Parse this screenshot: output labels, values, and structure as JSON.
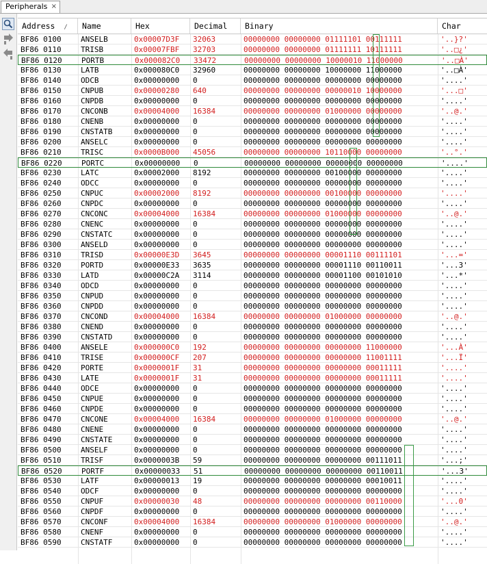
{
  "tab": {
    "title": "Peripherals",
    "close": "×"
  },
  "toolbar": {
    "icons": [
      "search-icon",
      "step-into-icon",
      "step-back-icon"
    ]
  },
  "columns": [
    "Address",
    "Name",
    "Hex",
    "Decimal",
    "Binary",
    "Char"
  ],
  "sort_indicator": "/",
  "colors": {
    "changed": "#d21d1d",
    "normal": "#000000",
    "highlight_box": "#2f8a3a"
  },
  "rows": [
    {
      "addr": "BF86 0100",
      "name": "ANSELB",
      "hex": "0x00007D3F",
      "dec": "32063",
      "bin": "00000000 00000000 01111101 00111111",
      "chr": "'..}?'",
      "changed": true
    },
    {
      "addr": "BF86 0110",
      "name": "TRISB",
      "hex": "0x00007FBF",
      "dec": "32703",
      "bin": "00000000 00000000 01111111 10111111",
      "chr": "'..□¿'",
      "changed": true
    },
    {
      "addr": "BF86 0120",
      "name": "PORTB",
      "hex": "0x000082C0",
      "dec": "33472",
      "bin": "00000000 00000000 10000010 11000000",
      "chr": "'..□À'",
      "changed": true,
      "hl": true
    },
    {
      "addr": "BF86 0130",
      "name": "LATB",
      "hex": "0x000080C0",
      "dec": "32960",
      "bin": "00000000 00000000 10000000 11000000",
      "chr": "'..□À'",
      "changed": false
    },
    {
      "addr": "BF86 0140",
      "name": "ODCB",
      "hex": "0x00000000",
      "dec": "0",
      "bin": "00000000 00000000 00000000 00000000",
      "chr": "'....'",
      "changed": false
    },
    {
      "addr": "BF86 0150",
      "name": "CNPUB",
      "hex": "0x00000280",
      "dec": "640",
      "bin": "00000000 00000000 00000010 10000000",
      "chr": "'...□'",
      "changed": true
    },
    {
      "addr": "BF86 0160",
      "name": "CNPDB",
      "hex": "0x00000000",
      "dec": "0",
      "bin": "00000000 00000000 00000000 00000000",
      "chr": "'....'",
      "changed": false
    },
    {
      "addr": "BF86 0170",
      "name": "CNCONB",
      "hex": "0x00004000",
      "dec": "16384",
      "bin": "00000000 00000000 01000000 00000000",
      "chr": "'..@.'",
      "changed": true
    },
    {
      "addr": "BF86 0180",
      "name": "CNENB",
      "hex": "0x00000000",
      "dec": "0",
      "bin": "00000000 00000000 00000000 00000000",
      "chr": "'....'",
      "changed": false
    },
    {
      "addr": "BF86 0190",
      "name": "CNSTATB",
      "hex": "0x00000000",
      "dec": "0",
      "bin": "00000000 00000000 00000000 00000000",
      "chr": "'....'",
      "changed": false
    },
    {
      "addr": "BF86 0200",
      "name": "ANSELC",
      "hex": "0x00000000",
      "dec": "0",
      "bin": "00000000 00000000 00000000 00000000",
      "chr": "'....'",
      "changed": false
    },
    {
      "addr": "BF86 0210",
      "name": "TRISC",
      "hex": "0x0000B000",
      "dec": "45056",
      "bin": "00000000 00000000 10110000 00000000",
      "chr": "'..°.'",
      "changed": true
    },
    {
      "addr": "BF86 0220",
      "name": "PORTC",
      "hex": "0x00000000",
      "dec": "0",
      "bin": "00000000 00000000 00000000 00000000",
      "chr": "'....'",
      "changed": false,
      "hl": true
    },
    {
      "addr": "BF86 0230",
      "name": "LATC",
      "hex": "0x00002000",
      "dec": "8192",
      "bin": "00000000 00000000 00100000 00000000",
      "chr": "'....'",
      "changed": false
    },
    {
      "addr": "BF86 0240",
      "name": "ODCC",
      "hex": "0x00000000",
      "dec": "0",
      "bin": "00000000 00000000 00000000 00000000",
      "chr": "'....'",
      "changed": false
    },
    {
      "addr": "BF86 0250",
      "name": "CNPUC",
      "hex": "0x00002000",
      "dec": "8192",
      "bin": "00000000 00000000 00100000 00000000",
      "chr": "'....'",
      "changed": true
    },
    {
      "addr": "BF86 0260",
      "name": "CNPDC",
      "hex": "0x00000000",
      "dec": "0",
      "bin": "00000000 00000000 00000000 00000000",
      "chr": "'....'",
      "changed": false
    },
    {
      "addr": "BF86 0270",
      "name": "CNCONC",
      "hex": "0x00004000",
      "dec": "16384",
      "bin": "00000000 00000000 01000000 00000000",
      "chr": "'..@.'",
      "changed": true
    },
    {
      "addr": "BF86 0280",
      "name": "CNENC",
      "hex": "0x00000000",
      "dec": "0",
      "bin": "00000000 00000000 00000000 00000000",
      "chr": "'....'",
      "changed": false
    },
    {
      "addr": "BF86 0290",
      "name": "CNSTATC",
      "hex": "0x00000000",
      "dec": "0",
      "bin": "00000000 00000000 00000000 00000000",
      "chr": "'....'",
      "changed": false
    },
    {
      "addr": "BF86 0300",
      "name": "ANSELD",
      "hex": "0x00000000",
      "dec": "0",
      "bin": "00000000 00000000 00000000 00000000",
      "chr": "'....'",
      "changed": false
    },
    {
      "addr": "BF86 0310",
      "name": "TRISD",
      "hex": "0x00000E3D",
      "dec": "3645",
      "bin": "00000000 00000000 00001110 00111101",
      "chr": "'...='",
      "changed": true
    },
    {
      "addr": "BF86 0320",
      "name": "PORTD",
      "hex": "0x00000E33",
      "dec": "3635",
      "bin": "00000000 00000000 00001110 00110011",
      "chr": "'...3'",
      "changed": false
    },
    {
      "addr": "BF86 0330",
      "name": "LATD",
      "hex": "0x00000C2A",
      "dec": "3114",
      "bin": "00000000 00000000 00001100 00101010",
      "chr": "'...*'",
      "changed": false
    },
    {
      "addr": "BF86 0340",
      "name": "ODCD",
      "hex": "0x00000000",
      "dec": "0",
      "bin": "00000000 00000000 00000000 00000000",
      "chr": "'....'",
      "changed": false
    },
    {
      "addr": "BF86 0350",
      "name": "CNPUD",
      "hex": "0x00000000",
      "dec": "0",
      "bin": "00000000 00000000 00000000 00000000",
      "chr": "'....'",
      "changed": false
    },
    {
      "addr": "BF86 0360",
      "name": "CNPDD",
      "hex": "0x00000000",
      "dec": "0",
      "bin": "00000000 00000000 00000000 00000000",
      "chr": "'....'",
      "changed": false
    },
    {
      "addr": "BF86 0370",
      "name": "CNCOND",
      "hex": "0x00004000",
      "dec": "16384",
      "bin": "00000000 00000000 01000000 00000000",
      "chr": "'..@.'",
      "changed": true
    },
    {
      "addr": "BF86 0380",
      "name": "CNEND",
      "hex": "0x00000000",
      "dec": "0",
      "bin": "00000000 00000000 00000000 00000000",
      "chr": "'....'",
      "changed": false
    },
    {
      "addr": "BF86 0390",
      "name": "CNSTATD",
      "hex": "0x00000000",
      "dec": "0",
      "bin": "00000000 00000000 00000000 00000000",
      "chr": "'....'",
      "changed": false
    },
    {
      "addr": "BF86 0400",
      "name": "ANSELE",
      "hex": "0x000000C0",
      "dec": "192",
      "bin": "00000000 00000000 00000000 11000000",
      "chr": "'...À'",
      "changed": true
    },
    {
      "addr": "BF86 0410",
      "name": "TRISE",
      "hex": "0x000000CF",
      "dec": "207",
      "bin": "00000000 00000000 00000000 11001111",
      "chr": "'...Ï'",
      "changed": true
    },
    {
      "addr": "BF86 0420",
      "name": "PORTE",
      "hex": "0x0000001F",
      "dec": "31",
      "bin": "00000000 00000000 00000000 00011111",
      "chr": "'....'",
      "changed": true
    },
    {
      "addr": "BF86 0430",
      "name": "LATE",
      "hex": "0x0000001F",
      "dec": "31",
      "bin": "00000000 00000000 00000000 00011111",
      "chr": "'....'",
      "changed": true
    },
    {
      "addr": "BF86 0440",
      "name": "ODCE",
      "hex": "0x00000000",
      "dec": "0",
      "bin": "00000000 00000000 00000000 00000000",
      "chr": "'....'",
      "changed": false
    },
    {
      "addr": "BF86 0450",
      "name": "CNPUE",
      "hex": "0x00000000",
      "dec": "0",
      "bin": "00000000 00000000 00000000 00000000",
      "chr": "'....'",
      "changed": false
    },
    {
      "addr": "BF86 0460",
      "name": "CNPDE",
      "hex": "0x00000000",
      "dec": "0",
      "bin": "00000000 00000000 00000000 00000000",
      "chr": "'....'",
      "changed": false
    },
    {
      "addr": "BF86 0470",
      "name": "CNCONE",
      "hex": "0x00004000",
      "dec": "16384",
      "bin": "00000000 00000000 01000000 00000000",
      "chr": "'..@.'",
      "changed": true
    },
    {
      "addr": "BF86 0480",
      "name": "CNENE",
      "hex": "0x00000000",
      "dec": "0",
      "bin": "00000000 00000000 00000000 00000000",
      "chr": "'....'",
      "changed": false
    },
    {
      "addr": "BF86 0490",
      "name": "CNSTATE",
      "hex": "0x00000000",
      "dec": "0",
      "bin": "00000000 00000000 00000000 00000000",
      "chr": "'....'",
      "changed": false
    },
    {
      "addr": "BF86 0500",
      "name": "ANSELF",
      "hex": "0x00000000",
      "dec": "0",
      "bin": "00000000 00000000 00000000 00000000",
      "chr": "'....'",
      "changed": false
    },
    {
      "addr": "BF86 0510",
      "name": "TRISF",
      "hex": "0x0000003B",
      "dec": "59",
      "bin": "00000000 00000000 00000000 00111011",
      "chr": "'...;'",
      "changed": false
    },
    {
      "addr": "BF86 0520",
      "name": "PORTF",
      "hex": "0x00000033",
      "dec": "51",
      "bin": "00000000 00000000 00000000 00110011",
      "chr": "'...3'",
      "changed": false,
      "hl": true
    },
    {
      "addr": "BF86 0530",
      "name": "LATF",
      "hex": "0x00000013",
      "dec": "19",
      "bin": "00000000 00000000 00000000 00010011",
      "chr": "'....'",
      "changed": false
    },
    {
      "addr": "BF86 0540",
      "name": "ODCF",
      "hex": "0x00000000",
      "dec": "0",
      "bin": "00000000 00000000 00000000 00000000",
      "chr": "'....'",
      "changed": false
    },
    {
      "addr": "BF86 0550",
      "name": "CNPUF",
      "hex": "0x00000030",
      "dec": "48",
      "bin": "00000000 00000000 00000000 00110000",
      "chr": "'...0'",
      "changed": true
    },
    {
      "addr": "BF86 0560",
      "name": "CNPDF",
      "hex": "0x00000000",
      "dec": "0",
      "bin": "00000000 00000000 00000000 00000000",
      "chr": "'....'",
      "changed": false
    },
    {
      "addr": "BF86 0570",
      "name": "CNCONF",
      "hex": "0x00004000",
      "dec": "16384",
      "bin": "00000000 00000000 01000000 00000000",
      "chr": "'..@.'",
      "changed": true
    },
    {
      "addr": "BF86 0580",
      "name": "CNENF",
      "hex": "0x00000000",
      "dec": "0",
      "bin": "00000000 00000000 00000000 00000000",
      "chr": "'....'",
      "changed": false
    },
    {
      "addr": "BF86 0590",
      "name": "CNSTATF",
      "hex": "0x00000000",
      "dec": "0",
      "bin": "00000000 00000000 00000000 00000000",
      "chr": "'....'",
      "changed": false
    }
  ]
}
